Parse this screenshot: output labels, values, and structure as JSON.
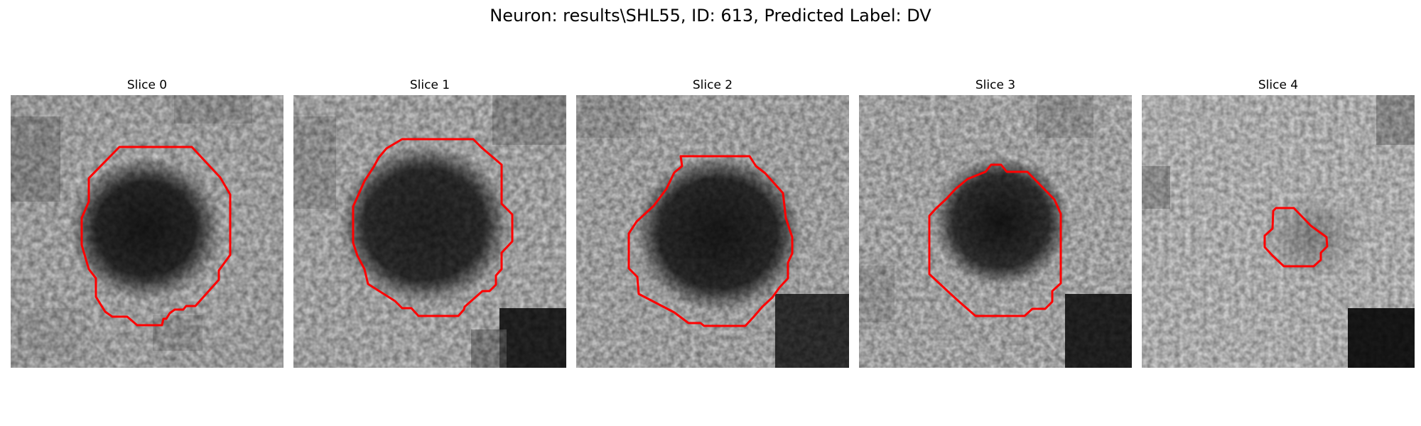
{
  "figure": {
    "title": "Neuron: results\\SHL55, ID: 613, Predicted Label: DV"
  },
  "panels": [
    {
      "title": "Slice 0"
    },
    {
      "title": "Slice 1"
    },
    {
      "title": "Slice 2"
    },
    {
      "title": "Slice 3"
    },
    {
      "title": "Slice 4"
    }
  ],
  "colors": {
    "contour": "#ff0000",
    "colormap": "grayscale"
  }
}
